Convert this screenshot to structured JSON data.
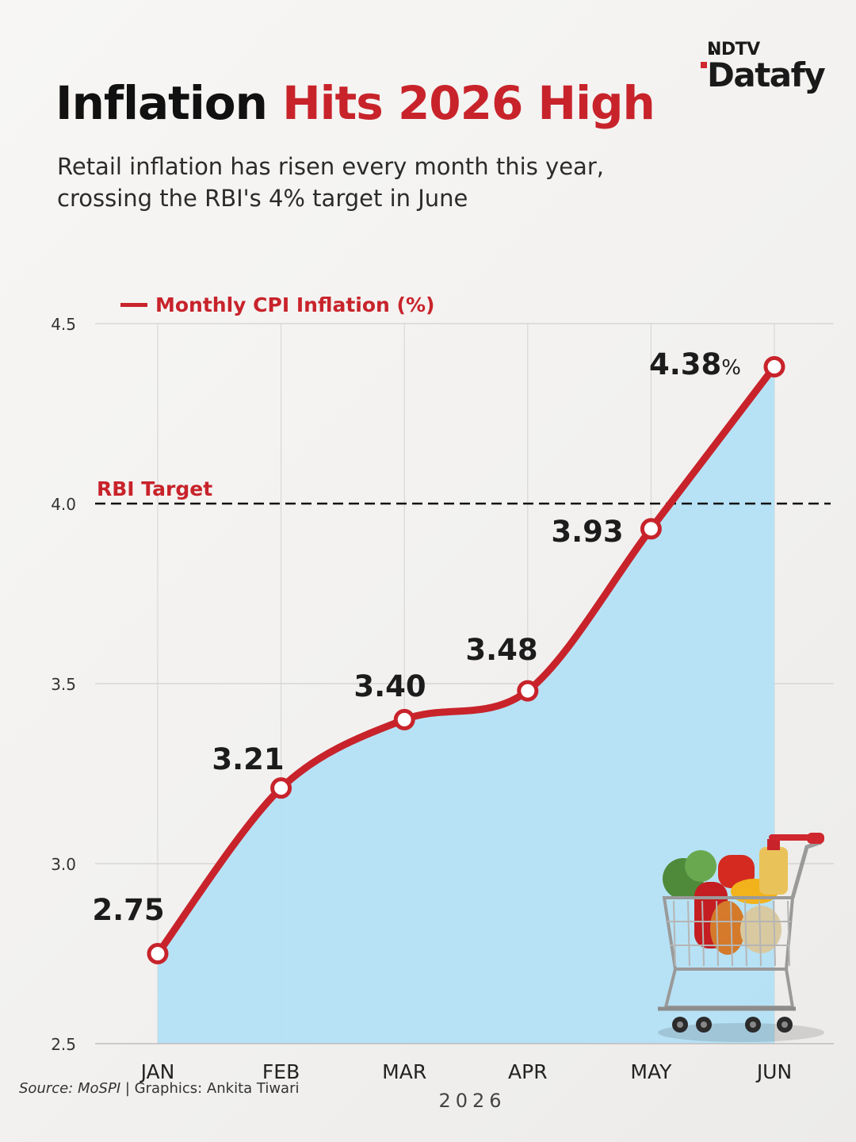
{
  "brand": {
    "top": "NDTV",
    "main": "Datafy"
  },
  "header": {
    "title_part1": "Inflation",
    "title_part2": "Hits 2026 High",
    "subtitle": "Retail inflation has risen every month this year, crossing the RBI's 4% target in June"
  },
  "colors": {
    "accent": "#c8232b",
    "area": "#b3e0f5",
    "text": "#111111"
  },
  "chart_data": {
    "type": "area",
    "categories": [
      "JAN",
      "FEB",
      "MAR",
      "APR",
      "MAY",
      "JUN"
    ],
    "series": [
      {
        "name": "Monthly CPI Inflation (%)",
        "values": [
          2.75,
          3.21,
          3.4,
          3.48,
          3.93,
          4.38
        ]
      }
    ],
    "data_labels": [
      "2.75",
      "3.21",
      "3.40",
      "3.48",
      "3.93",
      "4.38"
    ],
    "last_label_suffix": "%",
    "xlabel": "2026",
    "ylabel": "",
    "ylim": [
      2.5,
      4.5
    ],
    "yticks": [
      "2.5",
      "3.0",
      "3.5",
      "4.0",
      "4.5"
    ],
    "reference_line": {
      "value": 4.0,
      "label": "RBI Target",
      "style": "dashed"
    },
    "legend_position": "top-left",
    "grid": true
  },
  "decoration": {
    "icon": "shopping-cart-icon"
  },
  "footer": {
    "source_label": "Source: MoSPI",
    "credit": " | Graphics: Ankita Tiwari"
  }
}
